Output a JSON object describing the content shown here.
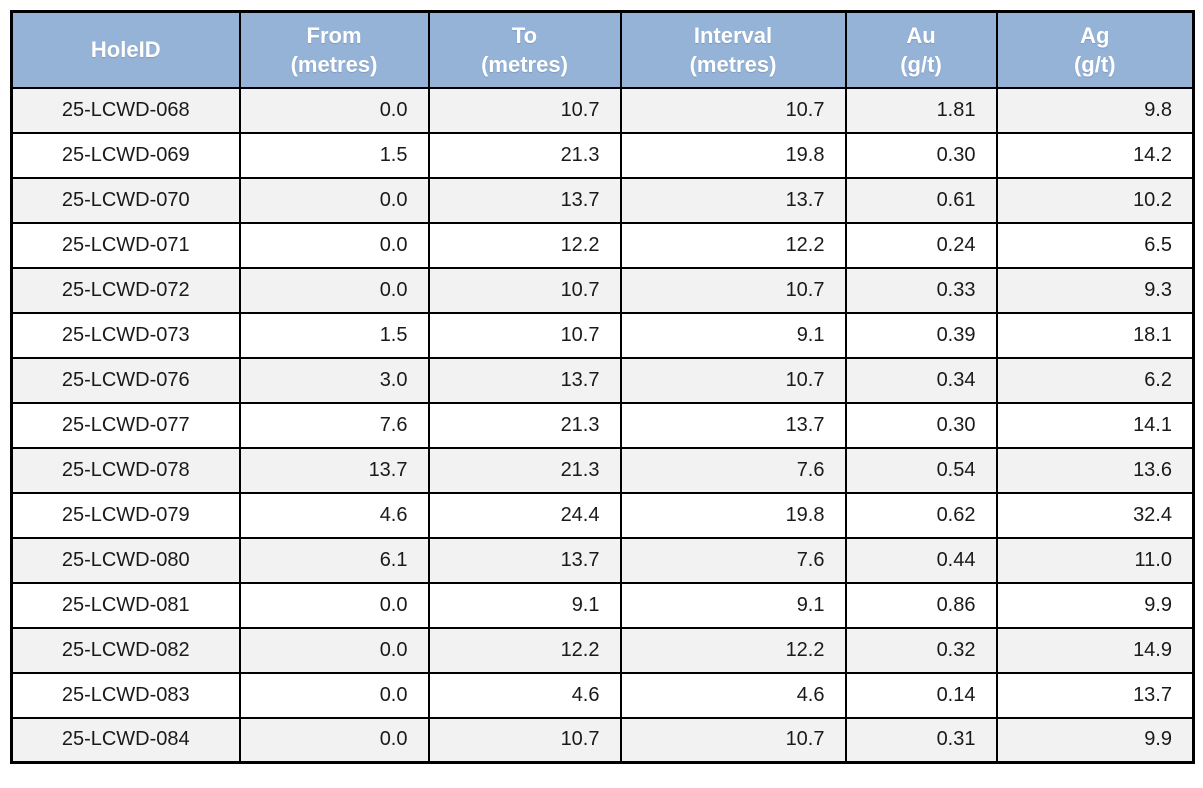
{
  "table": {
    "columns": [
      {
        "id": "holeid",
        "label_line1": "HoleID",
        "label_line2": ""
      },
      {
        "id": "from",
        "label_line1": "From",
        "label_line2": "(metres)"
      },
      {
        "id": "to",
        "label_line1": "To",
        "label_line2": "(metres)"
      },
      {
        "id": "interval",
        "label_line1": "Interval",
        "label_line2": "(metres)"
      },
      {
        "id": "au",
        "label_line1": "Au",
        "label_line2": "(g/t)"
      },
      {
        "id": "ag",
        "label_line1": "Ag",
        "label_line2": "(g/t)"
      }
    ],
    "rows": [
      [
        "25-LCWD-068",
        "0.0",
        "10.7",
        "10.7",
        "1.81",
        "9.8"
      ],
      [
        "25-LCWD-069",
        "1.5",
        "21.3",
        "19.8",
        "0.30",
        "14.2"
      ],
      [
        "25-LCWD-070",
        "0.0",
        "13.7",
        "13.7",
        "0.61",
        "10.2"
      ],
      [
        "25-LCWD-071",
        "0.0",
        "12.2",
        "12.2",
        "0.24",
        "6.5"
      ],
      [
        "25-LCWD-072",
        "0.0",
        "10.7",
        "10.7",
        "0.33",
        "9.3"
      ],
      [
        "25-LCWD-073",
        "1.5",
        "10.7",
        "9.1",
        "0.39",
        "18.1"
      ],
      [
        "25-LCWD-076",
        "3.0",
        "13.7",
        "10.7",
        "0.34",
        "6.2"
      ],
      [
        "25-LCWD-077",
        "7.6",
        "21.3",
        "13.7",
        "0.30",
        "14.1"
      ],
      [
        "25-LCWD-078",
        "13.7",
        "21.3",
        "7.6",
        "0.54",
        "13.6"
      ],
      [
        "25-LCWD-079",
        "4.6",
        "24.4",
        "19.8",
        "0.62",
        "32.4"
      ],
      [
        "25-LCWD-080",
        "6.1",
        "13.7",
        "7.6",
        "0.44",
        "11.0"
      ],
      [
        "25-LCWD-081",
        "0.0",
        "9.1",
        "9.1",
        "0.86",
        "9.9"
      ],
      [
        "25-LCWD-082",
        "0.0",
        "12.2",
        "12.2",
        "0.32",
        "14.9"
      ],
      [
        "25-LCWD-083",
        "0.0",
        "4.6",
        "4.6",
        "0.14",
        "13.7"
      ],
      [
        "25-LCWD-084",
        "0.0",
        "10.7",
        "10.7",
        "0.31",
        "9.9"
      ]
    ]
  },
  "colors": {
    "header_bg": "#95B3D7",
    "header_text": "#FFFFFF",
    "row_stripe": "#F2F2F2",
    "row_plain": "#FFFFFF",
    "border": "#000000"
  }
}
